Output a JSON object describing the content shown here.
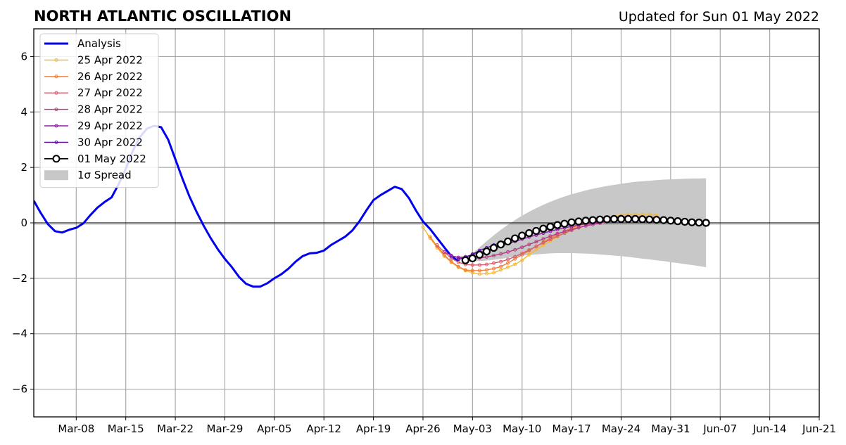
{
  "chart_data": {
    "type": "line",
    "title": "NORTH ATLANTIC OSCILLATION",
    "subtitle": "Updated for Sun 01 May 2022",
    "xlabel": "",
    "ylabel": "",
    "ylim": [
      -7,
      7
    ],
    "xlim": [
      "2022-03-02",
      "2022-06-21"
    ],
    "yticks": [
      -6,
      -4,
      -2,
      0,
      2,
      4,
      6
    ],
    "ytick_labels": [
      "−6",
      "−4",
      "−2",
      "0",
      "2",
      "4",
      "6"
    ],
    "xticks": [
      {
        "date": "2022-03-08",
        "label": "Mar-08"
      },
      {
        "date": "2022-03-15",
        "label": "Mar-15"
      },
      {
        "date": "2022-03-22",
        "label": "Mar-22"
      },
      {
        "date": "2022-03-29",
        "label": "Mar-29"
      },
      {
        "date": "2022-04-05",
        "label": "Apr-05"
      },
      {
        "date": "2022-04-12",
        "label": "Apr-12"
      },
      {
        "date": "2022-04-19",
        "label": "Apr-19"
      },
      {
        "date": "2022-04-26",
        "label": "Apr-26"
      },
      {
        "date": "2022-05-03",
        "label": "May-03"
      },
      {
        "date": "2022-05-10",
        "label": "May-10"
      },
      {
        "date": "2022-05-17",
        "label": "May-17"
      },
      {
        "date": "2022-05-24",
        "label": "May-24"
      },
      {
        "date": "2022-05-31",
        "label": "May-31"
      },
      {
        "date": "2022-06-07",
        "label": "Jun-07"
      },
      {
        "date": "2022-06-14",
        "label": "Jun-14"
      },
      {
        "date": "2022-06-21",
        "label": "Jun-21"
      }
    ],
    "grid": true,
    "legend_position": "upper-left",
    "series": [
      {
        "name": "Analysis",
        "color": "#0000ee",
        "style": "thick-line",
        "start": "2022-03-02",
        "values": [
          0.8,
          0.35,
          -0.05,
          -0.3,
          -0.35,
          -0.25,
          -0.18,
          -0.02,
          0.28,
          0.55,
          0.75,
          0.92,
          1.4,
          1.95,
          2.6,
          3.1,
          3.4,
          3.5,
          3.45,
          3.0,
          2.3,
          1.6,
          0.95,
          0.4,
          -0.1,
          -0.55,
          -0.95,
          -1.3,
          -1.6,
          -1.95,
          -2.2,
          -2.3,
          -2.3,
          -2.18,
          -2.0,
          -1.85,
          -1.65,
          -1.4,
          -1.2,
          -1.1,
          -1.08,
          -1.0,
          -0.8,
          -0.65,
          -0.5,
          -0.28,
          0.05,
          0.45,
          0.82,
          1.0,
          1.15,
          1.3,
          1.22,
          0.9,
          0.45,
          0.05,
          -0.22,
          -0.55,
          -0.88,
          -1.2,
          -1.38
        ]
      },
      {
        "name": "25 Apr 2022",
        "color": "#f5b72f",
        "style": "thin-line-dots",
        "start": "2022-04-26",
        "values": [
          -0.15,
          -0.55,
          -0.9,
          -1.2,
          -1.42,
          -1.6,
          -1.72,
          -1.8,
          -1.85,
          -1.83,
          -1.8,
          -1.7,
          -1.6,
          -1.5,
          -1.35,
          -1.15,
          -0.97,
          -0.8,
          -0.65,
          -0.5,
          -0.36,
          -0.22,
          -0.1,
          -0.02,
          0.08,
          0.14,
          0.2,
          0.24,
          0.28,
          0.3,
          0.3,
          0.3,
          0.3,
          0.28
        ]
      },
      {
        "name": "26 Apr 2022",
        "color": "#ee7f3b",
        "style": "thin-line-dots",
        "start": "2022-04-27",
        "values": [
          -0.5,
          -0.85,
          -1.15,
          -1.4,
          -1.58,
          -1.7,
          -1.72,
          -1.72,
          -1.7,
          -1.65,
          -1.58,
          -1.45,
          -1.3,
          -1.15,
          -1.0,
          -0.85,
          -0.7,
          -0.55,
          -0.42,
          -0.3,
          -0.18,
          -0.08,
          0.02,
          0.1,
          0.16,
          0.2,
          0.22,
          0.24,
          0.24,
          0.22,
          0.22,
          0.2,
          0.2
        ]
      },
      {
        "name": "27 Apr 2022",
        "color": "#d65c6e",
        "style": "thin-line-dots",
        "start": "2022-04-28",
        "values": [
          -0.8,
          -1.05,
          -1.28,
          -1.42,
          -1.5,
          -1.52,
          -1.52,
          -1.5,
          -1.45,
          -1.4,
          -1.32,
          -1.22,
          -1.1,
          -0.98,
          -0.85,
          -0.72,
          -0.6,
          -0.48,
          -0.37,
          -0.27,
          -0.18,
          -0.1,
          -0.02,
          0.05,
          0.1,
          0.14,
          0.16,
          0.18,
          0.18,
          0.18,
          0.17,
          0.16
        ]
      },
      {
        "name": "28 Apr 2022",
        "color": "#b83b88",
        "style": "thin-line-dots",
        "start": "2022-04-29",
        "values": [
          -1.05,
          -1.18,
          -1.25,
          -1.28,
          -1.28,
          -1.27,
          -1.23,
          -1.18,
          -1.12,
          -1.05,
          -0.97,
          -0.88,
          -0.78,
          -0.68,
          -0.58,
          -0.48,
          -0.39,
          -0.31,
          -0.24,
          -0.17,
          -0.11,
          -0.06,
          -0.01,
          0.03,
          0.06,
          0.08,
          0.1,
          0.11,
          0.11,
          0.11,
          0.1
        ]
      },
      {
        "name": "29 Apr 2022",
        "color": "#8e1da5",
        "style": "thin-line-dots",
        "start": "2022-04-30",
        "values": [
          -1.2,
          -1.25,
          -1.22,
          -1.15,
          -1.07,
          -0.99,
          -0.91,
          -0.83,
          -0.75,
          -0.67,
          -0.59,
          -0.51,
          -0.44,
          -0.37,
          -0.3,
          -0.24,
          -0.18,
          -0.13,
          -0.08,
          -0.04,
          0.0,
          0.03,
          0.06,
          0.08,
          0.09,
          0.1,
          0.1,
          0.1,
          0.09,
          0.08
        ]
      },
      {
        "name": "30 Apr 2022",
        "color": "#5a0fa0",
        "style": "thin-line-dots",
        "start": "2022-05-01",
        "values": [
          -1.32,
          -1.25,
          -1.13,
          -1.0,
          -0.9,
          -0.8,
          -0.71,
          -0.62,
          -0.54,
          -0.46,
          -0.39,
          -0.32,
          -0.26,
          -0.2,
          -0.15,
          -0.1,
          -0.06,
          -0.03,
          0.0,
          0.03,
          0.05,
          0.06,
          0.07,
          0.08,
          0.08,
          0.08,
          0.07,
          0.06,
          0.05
        ]
      },
      {
        "name": "01 May 2022",
        "color": "#000000",
        "style": "open-circles",
        "start": "2022-05-02",
        "values": [
          -1.35,
          -1.28,
          -1.15,
          -1.03,
          -0.9,
          -0.78,
          -0.67,
          -0.56,
          -0.46,
          -0.37,
          -0.29,
          -0.21,
          -0.14,
          -0.08,
          -0.03,
          0.02,
          0.05,
          0.08,
          0.1,
          0.12,
          0.13,
          0.14,
          0.14,
          0.14,
          0.14,
          0.13,
          0.12,
          0.11,
          0.1,
          0.08,
          0.06,
          0.04,
          0.02,
          0.01,
          0.0
        ]
      }
    ],
    "spread": {
      "name": "1σ Spread",
      "color": "#c8c8c8",
      "start": "2022-05-02",
      "upper": [
        -1.35,
        -1.1,
        -0.88,
        -0.66,
        -0.45,
        -0.25,
        -0.07,
        0.1,
        0.26,
        0.4,
        0.53,
        0.65,
        0.76,
        0.86,
        0.95,
        1.03,
        1.1,
        1.17,
        1.23,
        1.28,
        1.33,
        1.37,
        1.41,
        1.45,
        1.48,
        1.5,
        1.52,
        1.54,
        1.56,
        1.57,
        1.58,
        1.59,
        1.6,
        1.6,
        1.61
      ],
      "lower": [
        -1.35,
        -1.38,
        -1.38,
        -1.36,
        -1.33,
        -1.3,
        -1.26,
        -1.22,
        -1.19,
        -1.16,
        -1.14,
        -1.12,
        -1.1,
        -1.09,
        -1.09,
        -1.09,
        -1.1,
        -1.11,
        -1.12,
        -1.14,
        -1.16,
        -1.18,
        -1.2,
        -1.23,
        -1.26,
        -1.29,
        -1.32,
        -1.35,
        -1.38,
        -1.42,
        -1.45,
        -1.49,
        -1.52,
        -1.56,
        -1.6
      ]
    }
  }
}
